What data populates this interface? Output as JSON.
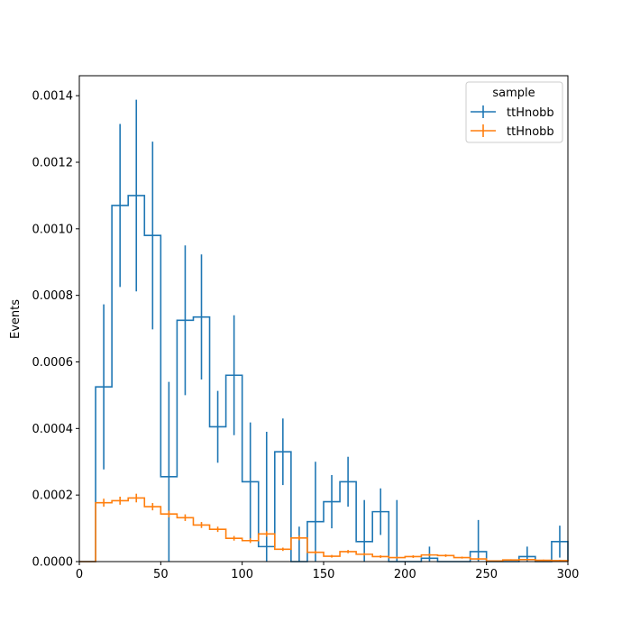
{
  "chart_data": {
    "type": "histogram-step",
    "ylabel": "Events",
    "xlim": [
      0,
      300
    ],
    "ylim": [
      0,
      0.00146
    ],
    "x_ticks": [
      0,
      50,
      100,
      150,
      200,
      250,
      300
    ],
    "y_ticks": [
      0.0,
      0.0002,
      0.0004,
      0.0006,
      0.0008,
      0.001,
      0.0012,
      0.0014
    ],
    "y_tick_labels": [
      "0.0000",
      "0.0002",
      "0.0004",
      "0.0006",
      "0.0008",
      "0.0010",
      "0.0012",
      "0.0014"
    ],
    "grid": false,
    "legend": {
      "title": "sample",
      "placement": "top-right"
    },
    "bin_edges": [
      0,
      10,
      20,
      30,
      40,
      50,
      60,
      70,
      80,
      90,
      100,
      110,
      120,
      130,
      140,
      150,
      160,
      170,
      180,
      190,
      200,
      210,
      220,
      230,
      240,
      250,
      260,
      270,
      280,
      290,
      300
    ],
    "series": [
      {
        "name": "ttHnobb",
        "color": "#1f77b4",
        "values": [
          0,
          0.000525,
          0.00107,
          0.0011,
          0.00098,
          0.000255,
          0.000725,
          0.000735,
          0.000405,
          0.00056,
          0.00024,
          4.5e-05,
          0.00033,
          0.0,
          0.00012,
          0.00018,
          0.00024,
          6e-05,
          0.00015,
          0.0,
          0.0,
          1e-05,
          0.0,
          0.0,
          3e-05,
          0.0,
          0.0,
          1.5e-05,
          0.0,
          6e-05
        ],
        "errors": [
          0,
          0.000248,
          0.000245,
          0.000288,
          0.000282,
          0.000285,
          0.000225,
          0.000188,
          0.000108,
          0.00018,
          0.000178,
          0.000345,
          0.0001,
          0.000105,
          0.00018,
          8e-05,
          7.5e-05,
          0.000125,
          7e-05,
          0.000185,
          0.0,
          3.5e-05,
          0.0,
          0.0,
          9.5e-05,
          0.0,
          0.0,
          3e-05,
          0.0,
          4.8e-05
        ]
      },
      {
        "name": "ttHnobb",
        "color": "#ff7f0e",
        "values": [
          0,
          0.000177,
          0.000183,
          0.000191,
          0.000165,
          0.000143,
          0.000132,
          0.00011,
          9.7e-05,
          7e-05,
          6.3e-05,
          8.3e-05,
          3.7e-05,
          7.1e-05,
          2.8e-05,
          1.6e-05,
          3e-05,
          2.2e-05,
          1.5e-05,
          1.2e-05,
          1.5e-05,
          2e-05,
          1.8e-05,
          1.2e-05,
          8e-06,
          2e-06,
          5e-06,
          6e-06,
          4e-06,
          3e-06
        ],
        "errors": [
          0,
          1.2e-05,
          1.2e-05,
          1.3e-05,
          1.1e-05,
          1e-05,
          1e-05,
          9e-06,
          8e-06,
          7e-06,
          7e-06,
          8e-06,
          5e-06,
          7e-06,
          5e-06,
          4e-06,
          5e-06,
          4e-06,
          4e-06,
          3e-06,
          4e-06,
          4e-06,
          4e-06,
          3e-06,
          3e-06,
          1e-06,
          2e-06,
          2e-06,
          2e-06,
          2e-06
        ]
      }
    ]
  }
}
